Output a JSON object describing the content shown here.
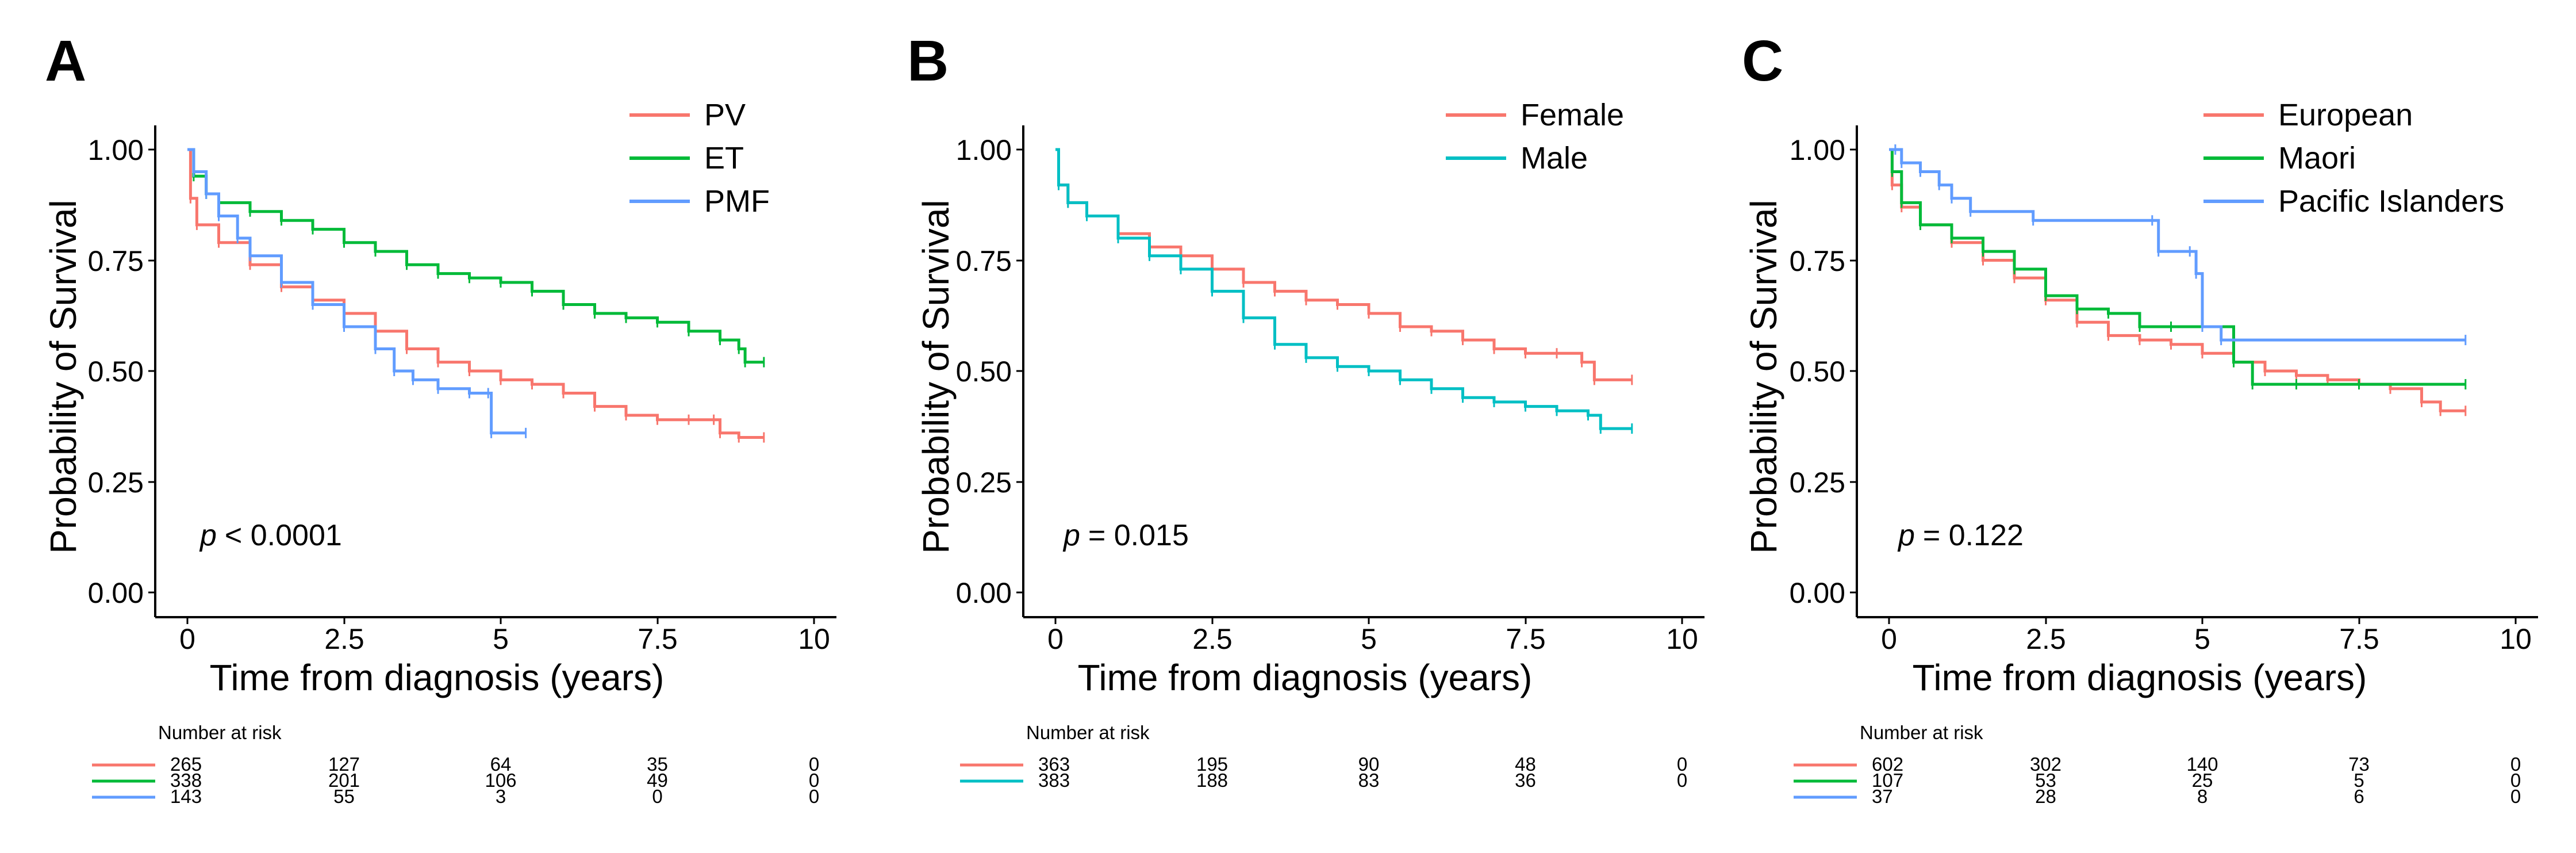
{
  "chart_data": [
    {
      "panel": "A",
      "type": "line",
      "xlabel": "Time from diagnosis (years)",
      "ylabel": "Probability of Survival",
      "xlim": [
        0,
        10
      ],
      "ylim": [
        0,
        1
      ],
      "x_ticks": [
        "0",
        "2.5",
        "5",
        "7.5",
        "10"
      ],
      "y_ticks": [
        "0.00",
        "0.25",
        "0.50",
        "0.75",
        "1.00"
      ],
      "p_prefix": "p",
      "p_text": "< 0.0001",
      "legend_position": "top-right",
      "series": [
        {
          "name": "PV",
          "color": "#F8766D",
          "points": [
            [
              0,
              1.0
            ],
            [
              0.05,
              0.89
            ],
            [
              0.15,
              0.83
            ],
            [
              0.5,
              0.79
            ],
            [
              1,
              0.74
            ],
            [
              1.5,
              0.69
            ],
            [
              2,
              0.66
            ],
            [
              2.5,
              0.63
            ],
            [
              3,
              0.59
            ],
            [
              3.5,
              0.55
            ],
            [
              4,
              0.52
            ],
            [
              4.5,
              0.5
            ],
            [
              5,
              0.48
            ],
            [
              5.5,
              0.47
            ],
            [
              6,
              0.45
            ],
            [
              6.5,
              0.42
            ],
            [
              7,
              0.4
            ],
            [
              7.5,
              0.39
            ],
            [
              8,
              0.39
            ],
            [
              8.4,
              0.39
            ],
            [
              8.5,
              0.36
            ],
            [
              8.8,
              0.35
            ],
            [
              9.2,
              0.35
            ]
          ]
        },
        {
          "name": "ET",
          "color": "#00BA38",
          "points": [
            [
              0,
              1.0
            ],
            [
              0.1,
              0.94
            ],
            [
              0.3,
              0.9
            ],
            [
              0.5,
              0.88
            ],
            [
              1,
              0.86
            ],
            [
              1.5,
              0.84
            ],
            [
              2,
              0.82
            ],
            [
              2.5,
              0.79
            ],
            [
              3,
              0.77
            ],
            [
              3.5,
              0.74
            ],
            [
              4,
              0.72
            ],
            [
              4.5,
              0.71
            ],
            [
              5,
              0.7
            ],
            [
              5.5,
              0.68
            ],
            [
              6,
              0.65
            ],
            [
              6.5,
              0.63
            ],
            [
              7,
              0.62
            ],
            [
              7.5,
              0.61
            ],
            [
              8,
              0.59
            ],
            [
              8.5,
              0.57
            ],
            [
              8.8,
              0.55
            ],
            [
              8.9,
              0.52
            ],
            [
              9.2,
              0.52
            ]
          ]
        },
        {
          "name": "PMF",
          "color": "#619CFF",
          "points": [
            [
              0,
              1.0
            ],
            [
              0.1,
              0.95
            ],
            [
              0.3,
              0.9
            ],
            [
              0.5,
              0.85
            ],
            [
              0.8,
              0.8
            ],
            [
              1,
              0.76
            ],
            [
              1.5,
              0.7
            ],
            [
              2,
              0.65
            ],
            [
              2.5,
              0.6
            ],
            [
              3,
              0.55
            ],
            [
              3.3,
              0.5
            ],
            [
              3.6,
              0.48
            ],
            [
              4,
              0.46
            ],
            [
              4.5,
              0.45
            ],
            [
              4.8,
              0.45
            ],
            [
              4.85,
              0.36
            ],
            [
              5.4,
              0.36
            ]
          ]
        }
      ],
      "risk_table": {
        "title": "Number at risk",
        "times": [
          0,
          2.5,
          5,
          7.5,
          10
        ],
        "rows": [
          {
            "name": "PV",
            "values": [
              265,
              127,
              64,
              35,
              0
            ]
          },
          {
            "name": "ET",
            "values": [
              338,
              201,
              106,
              49,
              0
            ]
          },
          {
            "name": "PMF",
            "values": [
              143,
              55,
              3,
              0,
              0
            ]
          }
        ]
      }
    },
    {
      "panel": "B",
      "type": "line",
      "xlabel": "Time from diagnosis (years)",
      "ylabel": "Probability of Survival",
      "xlim": [
        0,
        10
      ],
      "ylim": [
        0,
        1
      ],
      "x_ticks": [
        "0",
        "2.5",
        "5",
        "7.5",
        "10"
      ],
      "y_ticks": [
        "0.00",
        "0.25",
        "0.50",
        "0.75",
        "1.00"
      ],
      "p_prefix": "p",
      "p_text": "= 0.015",
      "legend_position": "top-right",
      "series": [
        {
          "name": "Female",
          "color": "#F8766D",
          "points": [
            [
              0,
              1.0
            ],
            [
              0.05,
              0.92
            ],
            [
              0.2,
              0.88
            ],
            [
              0.5,
              0.85
            ],
            [
              1,
              0.81
            ],
            [
              1.5,
              0.78
            ],
            [
              2,
              0.76
            ],
            [
              2.5,
              0.73
            ],
            [
              3,
              0.7
            ],
            [
              3.5,
              0.68
            ],
            [
              4,
              0.66
            ],
            [
              4.5,
              0.65
            ],
            [
              5,
              0.63
            ],
            [
              5.5,
              0.6
            ],
            [
              6,
              0.59
            ],
            [
              6.5,
              0.57
            ],
            [
              7,
              0.55
            ],
            [
              7.5,
              0.54
            ],
            [
              8,
              0.54
            ],
            [
              8.4,
              0.52
            ],
            [
              8.6,
              0.48
            ],
            [
              9.2,
              0.48
            ]
          ]
        },
        {
          "name": "Male",
          "color": "#00BFC4",
          "points": [
            [
              0,
              1.0
            ],
            [
              0.05,
              0.92
            ],
            [
              0.2,
              0.88
            ],
            [
              0.5,
              0.85
            ],
            [
              1,
              0.8
            ],
            [
              1.5,
              0.76
            ],
            [
              2,
              0.73
            ],
            [
              2.5,
              0.68
            ],
            [
              3,
              0.62
            ],
            [
              3.5,
              0.56
            ],
            [
              4,
              0.53
            ],
            [
              4.5,
              0.51
            ],
            [
              5,
              0.5
            ],
            [
              5.5,
              0.48
            ],
            [
              6,
              0.46
            ],
            [
              6.5,
              0.44
            ],
            [
              7,
              0.43
            ],
            [
              7.5,
              0.42
            ],
            [
              8,
              0.41
            ],
            [
              8.5,
              0.4
            ],
            [
              8.7,
              0.37
            ],
            [
              9.2,
              0.37
            ]
          ]
        }
      ],
      "risk_table": {
        "title": "Number at risk",
        "times": [
          0,
          2.5,
          5,
          7.5,
          10
        ],
        "rows": [
          {
            "name": "Female",
            "values": [
              363,
              195,
              90,
              48,
              0
            ]
          },
          {
            "name": "Male",
            "values": [
              383,
              188,
              83,
              36,
              0
            ]
          }
        ]
      }
    },
    {
      "panel": "C",
      "type": "line",
      "xlabel": "Time from diagnosis (years)",
      "ylabel": "Probability of Survival",
      "xlim": [
        0,
        10
      ],
      "ylim": [
        0,
        1
      ],
      "x_ticks": [
        "0",
        "2.5",
        "5",
        "7.5",
        "10"
      ],
      "y_ticks": [
        "0.00",
        "0.25",
        "0.50",
        "0.75",
        "1.00"
      ],
      "p_prefix": "p",
      "p_text": "= 0.122",
      "legend_position": "top-right",
      "series": [
        {
          "name": "European",
          "color": "#F8766D",
          "points": [
            [
              0,
              1.0
            ],
            [
              0.05,
              0.92
            ],
            [
              0.2,
              0.87
            ],
            [
              0.5,
              0.83
            ],
            [
              1,
              0.79
            ],
            [
              1.5,
              0.75
            ],
            [
              2,
              0.71
            ],
            [
              2.5,
              0.66
            ],
            [
              3,
              0.61
            ],
            [
              3.5,
              0.58
            ],
            [
              4,
              0.57
            ],
            [
              4.5,
              0.56
            ],
            [
              5,
              0.54
            ],
            [
              5.5,
              0.52
            ],
            [
              6,
              0.5
            ],
            [
              6.5,
              0.49
            ],
            [
              7,
              0.48
            ],
            [
              7.5,
              0.47
            ],
            [
              8,
              0.46
            ],
            [
              8.5,
              0.43
            ],
            [
              8.8,
              0.41
            ],
            [
              9.2,
              0.41
            ]
          ]
        },
        {
          "name": "Maori",
          "color": "#00BA38",
          "points": [
            [
              0,
              1.0
            ],
            [
              0.05,
              0.95
            ],
            [
              0.2,
              0.88
            ],
            [
              0.5,
              0.83
            ],
            [
              1,
              0.8
            ],
            [
              1.5,
              0.77
            ],
            [
              2,
              0.73
            ],
            [
              2.5,
              0.67
            ],
            [
              3,
              0.64
            ],
            [
              3.5,
              0.63
            ],
            [
              4,
              0.6
            ],
            [
              4.5,
              0.6
            ],
            [
              5,
              0.6
            ],
            [
              5.5,
              0.52
            ],
            [
              5.8,
              0.47
            ],
            [
              6.5,
              0.47
            ],
            [
              7.5,
              0.47
            ],
            [
              9.2,
              0.47
            ]
          ]
        },
        {
          "name": "Pacific Islanders",
          "color": "#619CFF",
          "points": [
            [
              0,
              1.0
            ],
            [
              0.1,
              1.0
            ],
            [
              0.2,
              0.97
            ],
            [
              0.5,
              0.95
            ],
            [
              0.8,
              0.92
            ],
            [
              1,
              0.89
            ],
            [
              1.3,
              0.86
            ],
            [
              2.3,
              0.84
            ],
            [
              4.2,
              0.84
            ],
            [
              4.3,
              0.77
            ],
            [
              4.8,
              0.77
            ],
            [
              4.9,
              0.72
            ],
            [
              5,
              0.6
            ],
            [
              5.3,
              0.57
            ],
            [
              9.2,
              0.57
            ]
          ]
        }
      ],
      "risk_table": {
        "title": "Number at risk",
        "times": [
          0,
          2.5,
          5,
          7.5,
          10
        ],
        "rows": [
          {
            "name": "European",
            "values": [
              602,
              302,
              140,
              73,
              0
            ]
          },
          {
            "name": "Maori",
            "values": [
              107,
              53,
              25,
              5,
              0
            ]
          },
          {
            "name": "Pacific Islanders",
            "values": [
              37,
              28,
              8,
              6,
              0
            ]
          }
        ]
      }
    }
  ]
}
